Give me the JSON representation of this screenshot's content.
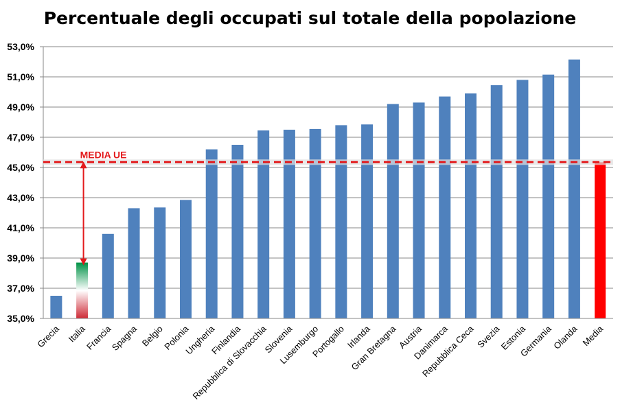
{
  "chart_data": {
    "type": "bar",
    "title": "Percentuale degli occupati sul totale della popolazione",
    "xlabel": "",
    "ylabel": "",
    "ylim": [
      35,
      53
    ],
    "yticks": [
      "35,0%",
      "37,0%",
      "39,0%",
      "41,0%",
      "43,0%",
      "45,0%",
      "47,0%",
      "49,0%",
      "51,0%",
      "53,0%"
    ],
    "grid": true,
    "categories": [
      "Grecia",
      "Italia",
      "Francia",
      "Spagna",
      "Belgio",
      "Polonia",
      "Ungheria",
      "Finlandia",
      "Repubblica di Slovacchia",
      "Slovenia",
      "Lusemburgo",
      "Portogallo",
      "Irlanda",
      "Gran Bretagna",
      "Austria",
      "Danimarca",
      "Repubblica Ceca",
      "Svezia",
      "Estonia",
      "Germania",
      "Olanda",
      "Media"
    ],
    "values": [
      36.5,
      38.7,
      40.6,
      42.3,
      42.35,
      42.85,
      46.2,
      46.5,
      47.45,
      47.5,
      47.55,
      47.8,
      47.85,
      49.2,
      49.3,
      49.7,
      49.9,
      50.45,
      50.8,
      51.15,
      52.15,
      45.35
    ],
    "colors": {
      "default": "#4f81bd",
      "media": "#ff0000",
      "italia": [
        "#009246",
        "#ffffff",
        "#ce2b37"
      ],
      "reference_line": "#e31a1c"
    },
    "reference_line": {
      "label": "MEDIA UE",
      "value": 45.35
    },
    "annotation": "double arrow from Italia value to MEDIA UE line"
  }
}
